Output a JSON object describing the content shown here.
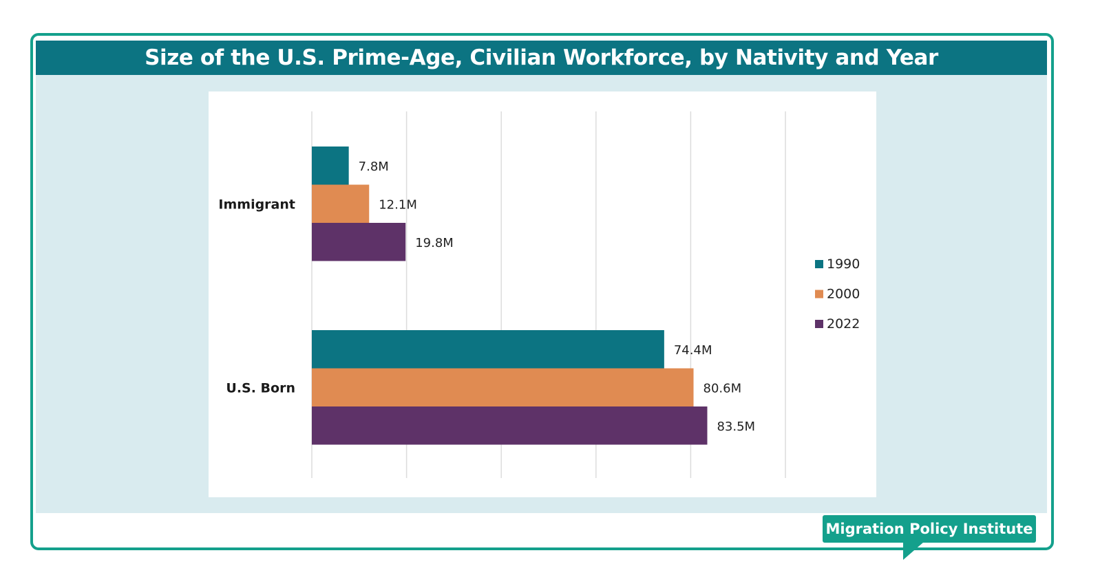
{
  "chart_data": {
    "type": "bar",
    "orientation": "horizontal",
    "title": "Size of the U.S. Prime-Age, Civilian Workforce, by Nativity and Year",
    "categories": [
      "Immigrant",
      "U.S. Born"
    ],
    "series": [
      {
        "name": "1990",
        "color": "#0c7482",
        "values": [
          7.8,
          74.4
        ],
        "labels": [
          "7.8M",
          "74.4M"
        ]
      },
      {
        "name": "2000",
        "color": "#e08b52",
        "values": [
          12.1,
          80.6
        ],
        "labels": [
          "12.1M",
          "80.6M"
        ]
      },
      {
        "name": "2022",
        "color": "#5e3268",
        "values": [
          19.8,
          83.5
        ],
        "labels": [
          "19.8M",
          "83.5M"
        ]
      }
    ],
    "xlim": [
      0,
      100
    ],
    "gridlines": [
      0,
      20,
      40,
      60,
      80,
      100
    ],
    "grid": "vertical",
    "legend_position": "right"
  },
  "source": {
    "label": "Migration Policy Institute"
  }
}
